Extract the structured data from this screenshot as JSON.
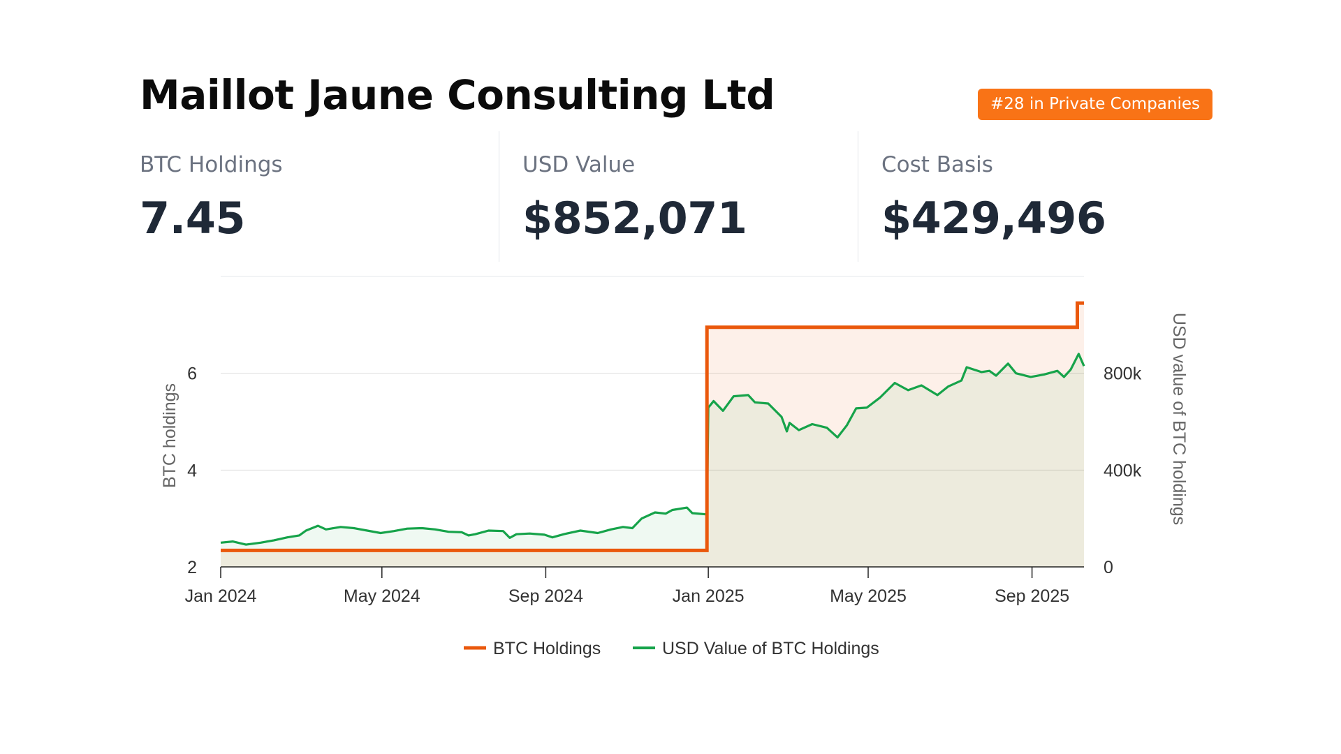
{
  "header": {
    "company_name": "Maillot Jaune Consulting Ltd",
    "rank_badge": "#28 in Private Companies"
  },
  "stats": [
    {
      "label": "BTC Holdings",
      "value": "7.45"
    },
    {
      "label": "USD Value",
      "value": "$852,071"
    },
    {
      "label": "Cost Basis",
      "value": "$429,496"
    }
  ],
  "colors": {
    "accent": "#f97316",
    "btc_line": "#ea580c",
    "usd_line": "#16a34a"
  },
  "chart_data": {
    "type": "line",
    "x_tick_labels": [
      "Jan 2024",
      "May 2024",
      "Sep 2024",
      "Jan 2025",
      "May 2025",
      "Sep 2025"
    ],
    "x_range": [
      "2024-01-01",
      "2025-10-10"
    ],
    "y_left": {
      "label": "BTC holdings",
      "ticks": [
        2,
        4,
        6
      ],
      "tick_labels": [
        "2",
        "4",
        "6"
      ],
      "range": [
        2,
        8
      ]
    },
    "y_right": {
      "label": "USD value of BTC holdings",
      "ticks": [
        0,
        400000,
        800000
      ],
      "tick_labels": [
        "0",
        "400k",
        "800k"
      ],
      "range": [
        0,
        1200000
      ]
    },
    "grid": true,
    "legend_position": "bottom",
    "series": [
      {
        "name": "BTC Holdings",
        "axis": "left",
        "step": true,
        "color": "#ea580c",
        "points": [
          [
            "2024-01-01",
            2.34
          ],
          [
            "2024-12-31",
            2.34
          ],
          [
            "2024-12-31",
            6.95
          ],
          [
            "2025-10-05",
            6.95
          ],
          [
            "2025-10-05",
            7.45
          ],
          [
            "2025-10-10",
            7.45
          ]
        ]
      },
      {
        "name": "USD Value of BTC Holdings",
        "axis": "right",
        "step": false,
        "color": "#16a34a",
        "points": [
          [
            "2024-01-01",
            100000
          ],
          [
            "2024-01-10",
            105000
          ],
          [
            "2024-01-20",
            92000
          ],
          [
            "2024-01-31",
            100000
          ],
          [
            "2024-02-10",
            110000
          ],
          [
            "2024-02-20",
            122000
          ],
          [
            "2024-02-29",
            130000
          ],
          [
            "2024-03-05",
            150000
          ],
          [
            "2024-03-14",
            170000
          ],
          [
            "2024-03-20",
            155000
          ],
          [
            "2024-03-31",
            165000
          ],
          [
            "2024-04-10",
            160000
          ],
          [
            "2024-04-20",
            150000
          ],
          [
            "2024-04-30",
            140000
          ],
          [
            "2024-05-10",
            148000
          ],
          [
            "2024-05-20",
            158000
          ],
          [
            "2024-05-31",
            160000
          ],
          [
            "2024-06-10",
            155000
          ],
          [
            "2024-06-20",
            145000
          ],
          [
            "2024-06-30",
            143000
          ],
          [
            "2024-07-05",
            130000
          ],
          [
            "2024-07-10",
            135000
          ],
          [
            "2024-07-20",
            150000
          ],
          [
            "2024-07-31",
            148000
          ],
          [
            "2024-08-05",
            120000
          ],
          [
            "2024-08-10",
            135000
          ],
          [
            "2024-08-20",
            138000
          ],
          [
            "2024-08-31",
            133000
          ],
          [
            "2024-09-06",
            122000
          ],
          [
            "2024-09-15",
            136000
          ],
          [
            "2024-09-27",
            150000
          ],
          [
            "2024-10-10",
            140000
          ],
          [
            "2024-10-20",
            155000
          ],
          [
            "2024-10-29",
            165000
          ],
          [
            "2024-11-05",
            160000
          ],
          [
            "2024-11-12",
            200000
          ],
          [
            "2024-11-22",
            225000
          ],
          [
            "2024-11-30",
            220000
          ],
          [
            "2024-12-05",
            235000
          ],
          [
            "2024-12-16",
            245000
          ],
          [
            "2024-12-20",
            222000
          ],
          [
            "2024-12-31",
            217000
          ],
          [
            "2025-01-01",
            658000
          ],
          [
            "2025-01-05",
            685000
          ],
          [
            "2025-01-12",
            645000
          ],
          [
            "2025-01-20",
            705000
          ],
          [
            "2025-01-31",
            710000
          ],
          [
            "2025-02-05",
            680000
          ],
          [
            "2025-02-15",
            675000
          ],
          [
            "2025-02-25",
            620000
          ],
          [
            "2025-03-01",
            560000
          ],
          [
            "2025-03-03",
            595000
          ],
          [
            "2025-03-10",
            565000
          ],
          [
            "2025-03-20",
            590000
          ],
          [
            "2025-03-31",
            575000
          ],
          [
            "2025-04-08",
            535000
          ],
          [
            "2025-04-15",
            585000
          ],
          [
            "2025-04-22",
            655000
          ],
          [
            "2025-04-30",
            658000
          ],
          [
            "2025-05-10",
            700000
          ],
          [
            "2025-05-21",
            760000
          ],
          [
            "2025-05-31",
            730000
          ],
          [
            "2025-06-10",
            750000
          ],
          [
            "2025-06-22",
            710000
          ],
          [
            "2025-06-30",
            745000
          ],
          [
            "2025-07-10",
            770000
          ],
          [
            "2025-07-14",
            825000
          ],
          [
            "2025-07-25",
            805000
          ],
          [
            "2025-07-31",
            810000
          ],
          [
            "2025-08-05",
            790000
          ],
          [
            "2025-08-14",
            840000
          ],
          [
            "2025-08-20",
            800000
          ],
          [
            "2025-08-31",
            785000
          ],
          [
            "2025-09-10",
            795000
          ],
          [
            "2025-09-20",
            810000
          ],
          [
            "2025-09-25",
            785000
          ],
          [
            "2025-09-30",
            815000
          ],
          [
            "2025-10-06",
            880000
          ],
          [
            "2025-10-10",
            830000
          ]
        ]
      }
    ]
  }
}
